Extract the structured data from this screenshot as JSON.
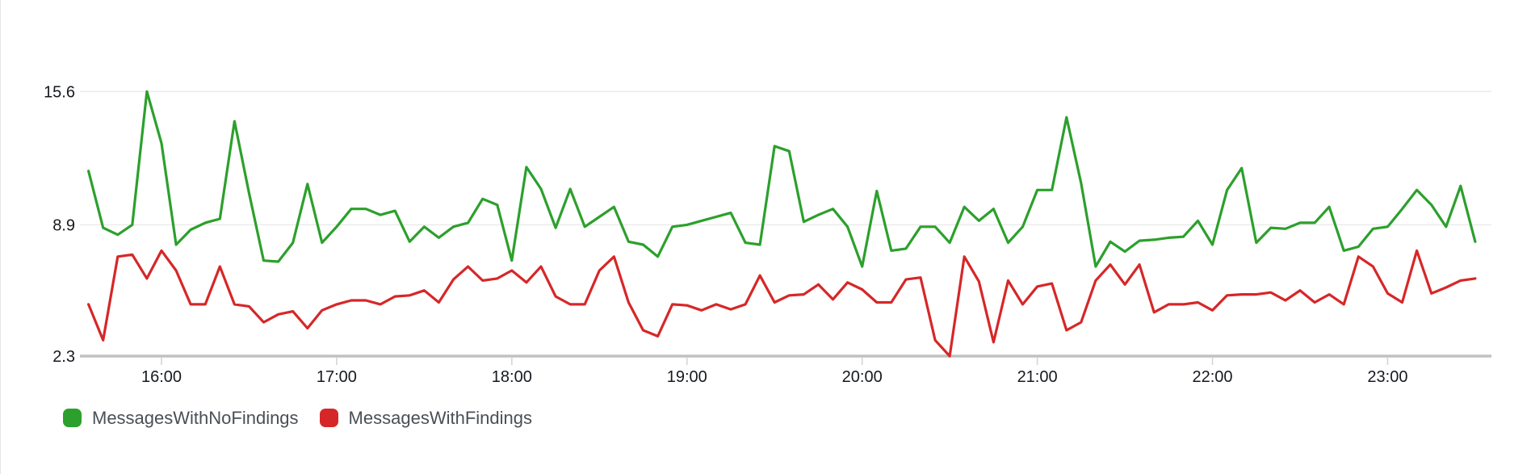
{
  "chart": {
    "y_axis": {
      "ticks": [
        {
          "label": "15.6",
          "value": 15.6
        },
        {
          "label": "8.9",
          "value": 8.9
        },
        {
          "label": "2.3",
          "value": 2.3
        }
      ]
    },
    "x_axis": {
      "tick_labels": [
        "16:00",
        "17:00",
        "18:00",
        "19:00",
        "20:00",
        "21:00",
        "22:00",
        "23:00"
      ]
    },
    "colors": {
      "grid": "#ebebeb",
      "axis": "#c2c2c2",
      "tick": "#d5d5d5",
      "label": "#16191f",
      "legend_text": "#4a4f56"
    }
  },
  "chart_data": {
    "type": "line",
    "x_start_time": "15:35",
    "x_end_time": "23:30",
    "period_minutes": 5,
    "x_tick_labels": [
      "16:00",
      "17:00",
      "18:00",
      "19:00",
      "20:00",
      "21:00",
      "22:00",
      "23:00"
    ],
    "ylim": [
      2.3,
      16.75
    ],
    "y_ticks": [
      2.3,
      8.9,
      15.6
    ],
    "grid": true,
    "legend_position": "bottom-left",
    "series": [
      {
        "name": "MessagesWithNoFindings",
        "color": "#2ca02c",
        "values": [
          11.6,
          8.75,
          8.4,
          8.9,
          15.6,
          13.0,
          7.9,
          8.65,
          9.0,
          9.2,
          14.1,
          10.5,
          7.1,
          7.05,
          8.0,
          10.95,
          8.0,
          8.8,
          9.7,
          9.7,
          9.4,
          9.6,
          8.05,
          8.8,
          8.25,
          8.8,
          9.0,
          10.2,
          9.9,
          7.1,
          11.8,
          10.7,
          8.75,
          10.7,
          8.8,
          9.3,
          9.8,
          8.05,
          7.9,
          7.3,
          8.8,
          8.9,
          9.1,
          9.3,
          9.5,
          8.0,
          7.9,
          12.85,
          12.6,
          9.05,
          9.4,
          9.7,
          8.8,
          6.8,
          10.6,
          7.6,
          7.7,
          8.8,
          8.8,
          8.0,
          9.8,
          9.1,
          9.7,
          8.0,
          8.8,
          10.65,
          10.65,
          14.3,
          11.0,
          6.8,
          8.05,
          7.55,
          8.1,
          8.15,
          8.25,
          8.3,
          9.1,
          7.9,
          10.65,
          11.75,
          8.0,
          8.75,
          8.7,
          9.0,
          9.0,
          9.8,
          7.6,
          7.8,
          8.7,
          8.8,
          9.7,
          10.65,
          9.9,
          8.8,
          10.85,
          8.05
        ]
      },
      {
        "name": "MessagesWithFindings",
        "color": "#d62728",
        "values": [
          4.9,
          3.1,
          7.3,
          7.4,
          6.2,
          7.6,
          6.6,
          4.9,
          4.9,
          6.8,
          4.9,
          4.8,
          4.0,
          4.4,
          4.55,
          3.7,
          4.6,
          4.9,
          5.1,
          5.1,
          4.9,
          5.3,
          5.35,
          5.6,
          5.0,
          6.15,
          6.8,
          6.1,
          6.2,
          6.6,
          6.0,
          6.8,
          5.3,
          4.9,
          4.9,
          6.6,
          7.3,
          5.0,
          3.6,
          3.3,
          4.9,
          4.85,
          4.6,
          4.9,
          4.65,
          4.9,
          6.35,
          5.0,
          5.35,
          5.4,
          5.9,
          5.15,
          6.0,
          5.65,
          5.0,
          5.0,
          6.15,
          6.25,
          3.1,
          2.3,
          7.3,
          6.05,
          3.0,
          6.1,
          4.9,
          5.8,
          5.95,
          3.6,
          4.0,
          6.1,
          6.9,
          5.9,
          6.9,
          4.5,
          4.9,
          4.9,
          5.0,
          4.6,
          5.35,
          5.4,
          5.4,
          5.5,
          5.1,
          5.6,
          5.0,
          5.4,
          4.9,
          7.3,
          6.8,
          5.45,
          5.0,
          7.6,
          5.45,
          5.75,
          6.1,
          6.2
        ]
      }
    ]
  }
}
